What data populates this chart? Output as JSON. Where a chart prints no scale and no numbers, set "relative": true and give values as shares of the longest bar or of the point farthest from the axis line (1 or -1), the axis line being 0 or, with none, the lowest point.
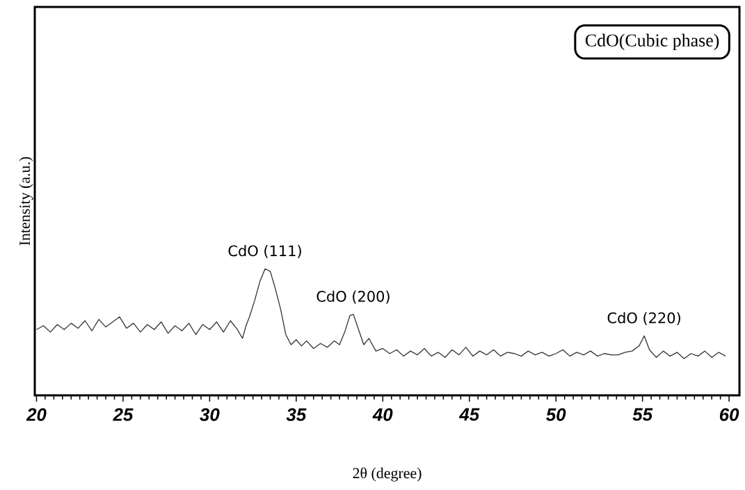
{
  "chart_data": {
    "type": "line",
    "relative": true,
    "xlabel": "2θ (degree)",
    "ylabel": "Intensity (a.u.)",
    "xlim": [
      19.9,
      60.6
    ],
    "xticks": [
      20,
      25,
      30,
      35,
      40,
      45,
      50,
      55,
      60
    ],
    "grid": false,
    "marker": "none",
    "line_style": "solid",
    "annotations": [
      "CdO(Cubic phase)",
      {
        "text": "CdO (111)",
        "x": 33.2,
        "y": 1.0
      },
      {
        "text": "CdO (200)",
        "x": 38.3,
        "y": 0.64
      },
      {
        "text": "CdO (220)",
        "x": 55.1,
        "y": 0.47
      }
    ],
    "series": [
      {
        "color": "#333333",
        "x": [
          20.0,
          20.4,
          20.8,
          21.2,
          21.6,
          22.0,
          22.4,
          22.8,
          23.2,
          23.6,
          24.0,
          24.4,
          24.8,
          25.2,
          25.6,
          26.0,
          26.4,
          26.8,
          27.2,
          27.6,
          28.0,
          28.4,
          28.8,
          29.2,
          29.6,
          30.0,
          30.4,
          30.8,
          31.2,
          31.6,
          31.9,
          32.1,
          32.3,
          32.6,
          32.9,
          33.2,
          33.5,
          33.8,
          34.1,
          34.4,
          34.7,
          35.0,
          35.3,
          35.6,
          36.0,
          36.4,
          36.8,
          37.2,
          37.5,
          37.8,
          38.1,
          38.3,
          38.6,
          38.9,
          39.2,
          39.6,
          40.0,
          40.4,
          40.8,
          41.2,
          41.6,
          42.0,
          42.4,
          42.8,
          43.2,
          43.6,
          44.0,
          44.4,
          44.8,
          45.2,
          45.6,
          46.0,
          46.4,
          46.8,
          47.2,
          47.6,
          48.0,
          48.4,
          48.8,
          49.2,
          49.6,
          50.0,
          50.4,
          50.8,
          51.2,
          51.6,
          52.0,
          52.4,
          52.8,
          53.2,
          53.6,
          54.0,
          54.4,
          54.8,
          55.1,
          55.4,
          55.8,
          56.2,
          56.6,
          57.0,
          57.4,
          57.8,
          58.2,
          58.6,
          59.0,
          59.4,
          59.8
        ],
        "values": [
          0.52,
          0.55,
          0.5,
          0.56,
          0.52,
          0.57,
          0.53,
          0.59,
          0.51,
          0.6,
          0.54,
          0.58,
          0.62,
          0.53,
          0.57,
          0.5,
          0.56,
          0.52,
          0.58,
          0.49,
          0.55,
          0.51,
          0.57,
          0.48,
          0.56,
          0.52,
          0.58,
          0.5,
          0.59,
          0.52,
          0.45,
          0.55,
          0.62,
          0.75,
          0.9,
          1.0,
          0.98,
          0.84,
          0.68,
          0.48,
          0.4,
          0.44,
          0.39,
          0.43,
          0.37,
          0.41,
          0.38,
          0.43,
          0.4,
          0.5,
          0.63,
          0.64,
          0.52,
          0.4,
          0.45,
          0.35,
          0.37,
          0.33,
          0.36,
          0.31,
          0.35,
          0.32,
          0.37,
          0.31,
          0.34,
          0.3,
          0.36,
          0.32,
          0.38,
          0.31,
          0.35,
          0.32,
          0.36,
          0.31,
          0.34,
          0.33,
          0.31,
          0.35,
          0.32,
          0.34,
          0.31,
          0.33,
          0.36,
          0.31,
          0.34,
          0.32,
          0.35,
          0.31,
          0.33,
          0.32,
          0.32,
          0.34,
          0.35,
          0.39,
          0.47,
          0.36,
          0.3,
          0.35,
          0.31,
          0.34,
          0.29,
          0.33,
          0.31,
          0.35,
          0.3,
          0.34,
          0.31
        ]
      }
    ]
  }
}
